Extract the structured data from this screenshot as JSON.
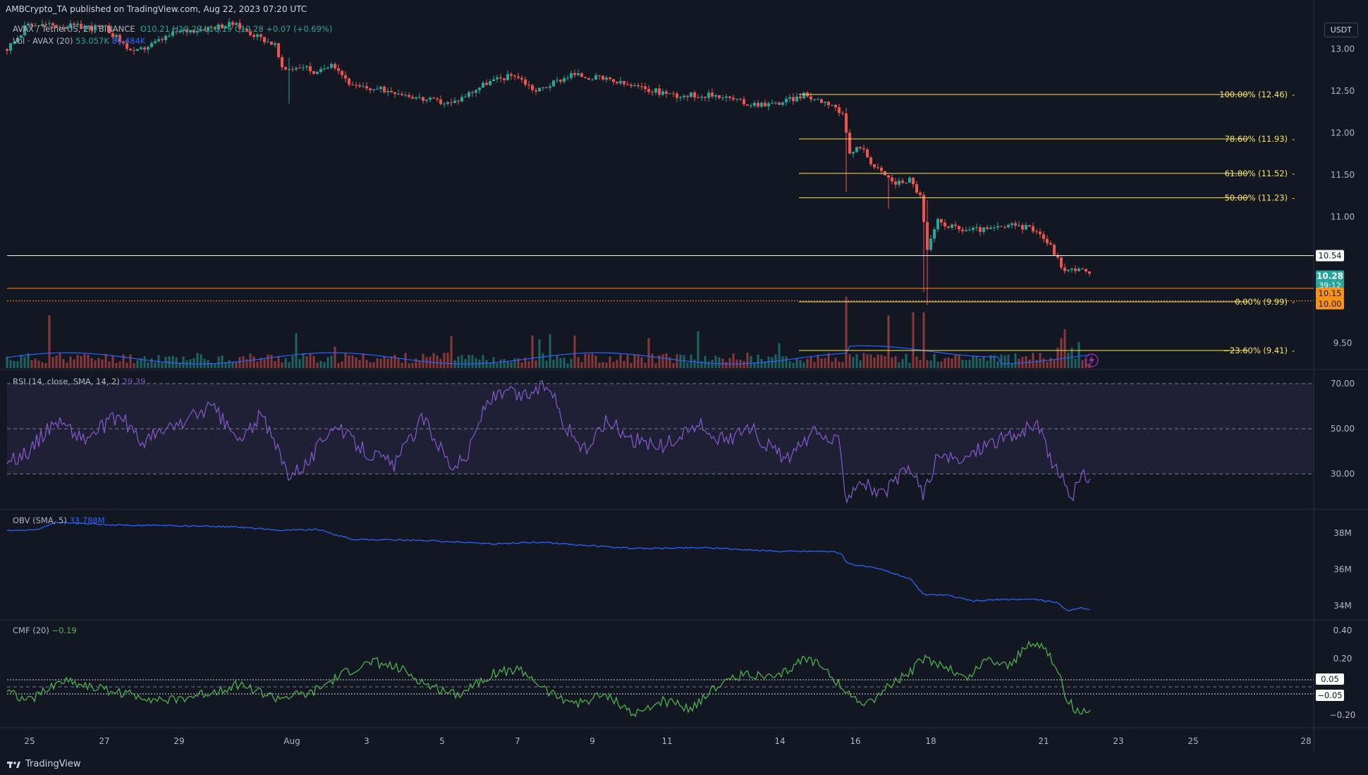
{
  "header": {
    "publisher": "AMBCrypto_TA published on TradingView.com, Aug 22, 2023 07:20 UTC"
  },
  "legend": {
    "symbol": "AVAX / TetherUS, 2h, BINANCE",
    "ohlc": "O10.21  H10.29  L10.19  C10.28  +0.07 (+0.69%)",
    "vol_label": "Vol · AVAX (20)",
    "vol_value": "53.057K",
    "vol_ma": "80.484K",
    "rsi_label": "RSI (14, close, SMA, 14, 2)",
    "rsi_value": "29.39",
    "obv_label": "OBV (SMA, 5)",
    "obv_value": "33.788M",
    "cmf_label": "CMF (20)",
    "cmf_value": "−0.19"
  },
  "currency_button": "USDT",
  "brand": "TradingView",
  "colors": {
    "bg": "#131722",
    "up": "#26a69a",
    "down": "#ef5350",
    "fib": "#f5e663",
    "rsi": "#7e57c2",
    "obv": "#2962ff",
    "cmf": "#4caf50",
    "orange": "#f7931a"
  },
  "chart_data": [
    {
      "type": "candlestick",
      "pane": "price",
      "x_ticks": [
        "25",
        "27",
        "29",
        "Aug",
        "3",
        "5",
        "7",
        "9",
        "11",
        "14",
        "16",
        "18",
        "21",
        "23",
        "25",
        "28"
      ],
      "y_ticks": [
        "13.00",
        "12.50",
        "12.00",
        "11.50",
        "11.00",
        "10.50",
        "10.00",
        "9.50"
      ],
      "ylim": [
        9.2,
        13.35
      ],
      "series_anchors": [
        [
          0,
          12.9
        ],
        [
          40,
          13.3
        ],
        [
          150,
          13.25
        ],
        [
          190,
          12.95
        ],
        [
          250,
          13.2
        ],
        [
          330,
          13.3
        ],
        [
          390,
          13.05
        ],
        [
          400,
          12.75
        ],
        [
          430,
          12.8
        ],
        [
          450,
          12.7
        ],
        [
          470,
          12.85
        ],
        [
          500,
          12.55
        ],
        [
          560,
          12.5
        ],
        [
          600,
          12.4
        ],
        [
          640,
          12.35
        ],
        [
          690,
          12.6
        ],
        [
          730,
          12.7
        ],
        [
          760,
          12.5
        ],
        [
          810,
          12.7
        ],
        [
          850,
          12.65
        ],
        [
          900,
          12.55
        ],
        [
          960,
          12.45
        ],
        [
          1020,
          12.45
        ],
        [
          1060,
          12.35
        ],
        [
          1100,
          12.35
        ],
        [
          1140,
          12.45
        ],
        [
          1180,
          12.35
        ],
        [
          1195,
          12.2
        ],
        [
          1205,
          11.75
        ],
        [
          1220,
          11.85
        ],
        [
          1240,
          11.6
        ],
        [
          1270,
          11.4
        ],
        [
          1290,
          11.45
        ],
        [
          1305,
          11.25
        ],
        [
          1315,
          10.6
        ],
        [
          1330,
          10.95
        ],
        [
          1360,
          10.85
        ],
        [
          1400,
          10.85
        ],
        [
          1440,
          10.9
        ],
        [
          1470,
          10.85
        ],
        [
          1490,
          10.65
        ],
        [
          1510,
          10.35
        ],
        [
          1530,
          10.4
        ],
        [
          1548,
          10.28
        ]
      ],
      "last_x": 1548,
      "wicks": [
        [
          1200,
          11.3,
          12.3
        ],
        [
          1308,
          10.1,
          11.3
        ],
        [
          1314,
          9.95,
          11.2
        ],
        [
          1262,
          11.1,
          11.5
        ],
        [
          410,
          12.35,
          12.9
        ]
      ],
      "horizontal_levels": [
        {
          "price": 10.54,
          "label": "10.54",
          "color": "#ffffff"
        },
        {
          "price": 10.15,
          "label": "10.15",
          "color": "#f7931a"
        },
        {
          "price": 10.0,
          "label": "10.00",
          "color": "#f7931a"
        }
      ],
      "last_price_badge": {
        "price": "10.28",
        "countdown": "39:12"
      },
      "fibonacci": [
        {
          "level": "100.00%",
          "price": 12.46,
          "label": "100.00% (12.46)"
        },
        {
          "level": "78.60%",
          "price": 11.93,
          "label": "78.60% (11.93)"
        },
        {
          "level": "61.80%",
          "price": 11.52,
          "label": "61.80% (11.52)"
        },
        {
          "level": "50.00%",
          "price": 11.23,
          "label": "50.00% (11.23)"
        },
        {
          "level": "0.00%",
          "price": 9.99,
          "label": "0.00% (9.99)"
        },
        {
          "level": "-23.60%",
          "price": 9.41,
          "label": "−23.60% (9.41)"
        }
      ],
      "volume": {
        "spikes": [
          [
            1200,
            0.92
          ],
          [
            1258,
            0.68
          ],
          [
            1294,
            0.72
          ],
          [
            1308,
            0.72
          ],
          [
            1512,
            0.5
          ],
          [
            70,
            0.68
          ],
          [
            420,
            0.45
          ],
          [
            815,
            0.42
          ]
        ]
      }
    },
    {
      "type": "line",
      "pane": "rsi",
      "name": "RSI",
      "y_ticks": [
        "70.00",
        "50.00",
        "30.00"
      ],
      "ylim": [
        15,
        75
      ],
      "series_anchors": [
        [
          0,
          33
        ],
        [
          40,
          40
        ],
        [
          80,
          54
        ],
        [
          120,
          45
        ],
        [
          170,
          56
        ],
        [
          200,
          44
        ],
        [
          260,
          53
        ],
        [
          300,
          60
        ],
        [
          340,
          44
        ],
        [
          370,
          56
        ],
        [
          410,
          30
        ],
        [
          440,
          36
        ],
        [
          470,
          52
        ],
        [
          520,
          40
        ],
        [
          560,
          34
        ],
        [
          600,
          55
        ],
        [
          640,
          34
        ],
        [
          660,
          36
        ],
        [
          690,
          62
        ],
        [
          720,
          66
        ],
        [
          740,
          64
        ],
        [
          780,
          70
        ],
        [
          800,
          52
        ],
        [
          830,
          40
        ],
        [
          860,
          54
        ],
        [
          900,
          45
        ],
        [
          940,
          42
        ],
        [
          990,
          52
        ],
        [
          1030,
          44
        ],
        [
          1060,
          52
        ],
        [
          1090,
          42
        ],
        [
          1120,
          36
        ],
        [
          1150,
          48
        ],
        [
          1190,
          44
        ],
        [
          1200,
          20
        ],
        [
          1220,
          28
        ],
        [
          1250,
          20
        ],
        [
          1290,
          33
        ],
        [
          1310,
          21
        ],
        [
          1330,
          38
        ],
        [
          1360,
          35
        ],
        [
          1400,
          44
        ],
        [
          1440,
          47
        ],
        [
          1470,
          52
        ],
        [
          1500,
          30
        ],
        [
          1510,
          26
        ],
        [
          1520,
          20
        ],
        [
          1535,
          29
        ],
        [
          1548,
          29
        ]
      ]
    },
    {
      "type": "line",
      "pane": "obv",
      "name": "OBV",
      "y_ticks": [
        "38M",
        "36M",
        "34M"
      ],
      "ylim": [
        33.3,
        39.2
      ],
      "series_anchors": [
        [
          0,
          38.15
        ],
        [
          50,
          38.15
        ],
        [
          80,
          38.6
        ],
        [
          150,
          38.45
        ],
        [
          250,
          38.4
        ],
        [
          330,
          38.35
        ],
        [
          400,
          38.15
        ],
        [
          450,
          38.2
        ],
        [
          500,
          37.65
        ],
        [
          600,
          37.6
        ],
        [
          700,
          37.4
        ],
        [
          760,
          37.5
        ],
        [
          800,
          37.4
        ],
        [
          900,
          37.15
        ],
        [
          1000,
          37.2
        ],
        [
          1100,
          37.0
        ],
        [
          1180,
          37.0
        ],
        [
          1195,
          36.8
        ],
        [
          1200,
          36.35
        ],
        [
          1250,
          36.0
        ],
        [
          1290,
          35.5
        ],
        [
          1310,
          34.6
        ],
        [
          1340,
          34.6
        ],
        [
          1380,
          34.25
        ],
        [
          1420,
          34.35
        ],
        [
          1470,
          34.35
        ],
        [
          1500,
          34.15
        ],
        [
          1515,
          33.7
        ],
        [
          1530,
          33.9
        ],
        [
          1548,
          33.8
        ]
      ]
    },
    {
      "type": "line",
      "pane": "cmf",
      "name": "CMF",
      "y_ticks": [
        "0.40",
        "0.20",
        "−0.20"
      ],
      "ylim": [
        -0.28,
        0.46
      ],
      "reference_levels": [
        "0.05",
        "−0.05"
      ],
      "series_anchors": [
        [
          0,
          0.0
        ],
        [
          40,
          -0.1
        ],
        [
          90,
          0.05
        ],
        [
          130,
          0.0
        ],
        [
          180,
          -0.05
        ],
        [
          240,
          -0.1
        ],
        [
          290,
          -0.05
        ],
        [
          340,
          0.02
        ],
        [
          390,
          -0.08
        ],
        [
          440,
          -0.05
        ],
        [
          490,
          0.1
        ],
        [
          530,
          0.18
        ],
        [
          570,
          0.12
        ],
        [
          610,
          0.0
        ],
        [
          650,
          -0.05
        ],
        [
          700,
          0.1
        ],
        [
          740,
          0.12
        ],
        [
          780,
          -0.05
        ],
        [
          820,
          -0.12
        ],
        [
          860,
          -0.05
        ],
        [
          900,
          -0.2
        ],
        [
          940,
          -0.1
        ],
        [
          980,
          -0.15
        ],
        [
          1020,
          0.02
        ],
        [
          1060,
          0.1
        ],
        [
          1100,
          0.05
        ],
        [
          1140,
          0.2
        ],
        [
          1170,
          0.15
        ],
        [
          1200,
          -0.05
        ],
        [
          1230,
          -0.12
        ],
        [
          1260,
          0.0
        ],
        [
          1290,
          0.1
        ],
        [
          1310,
          0.2
        ],
        [
          1340,
          0.15
        ],
        [
          1370,
          0.05
        ],
        [
          1400,
          0.2
        ],
        [
          1430,
          0.15
        ],
        [
          1460,
          0.3
        ],
        [
          1480,
          0.3
        ],
        [
          1500,
          0.1
        ],
        [
          1515,
          -0.1
        ],
        [
          1530,
          -0.18
        ],
        [
          1548,
          -0.19
        ]
      ]
    }
  ]
}
